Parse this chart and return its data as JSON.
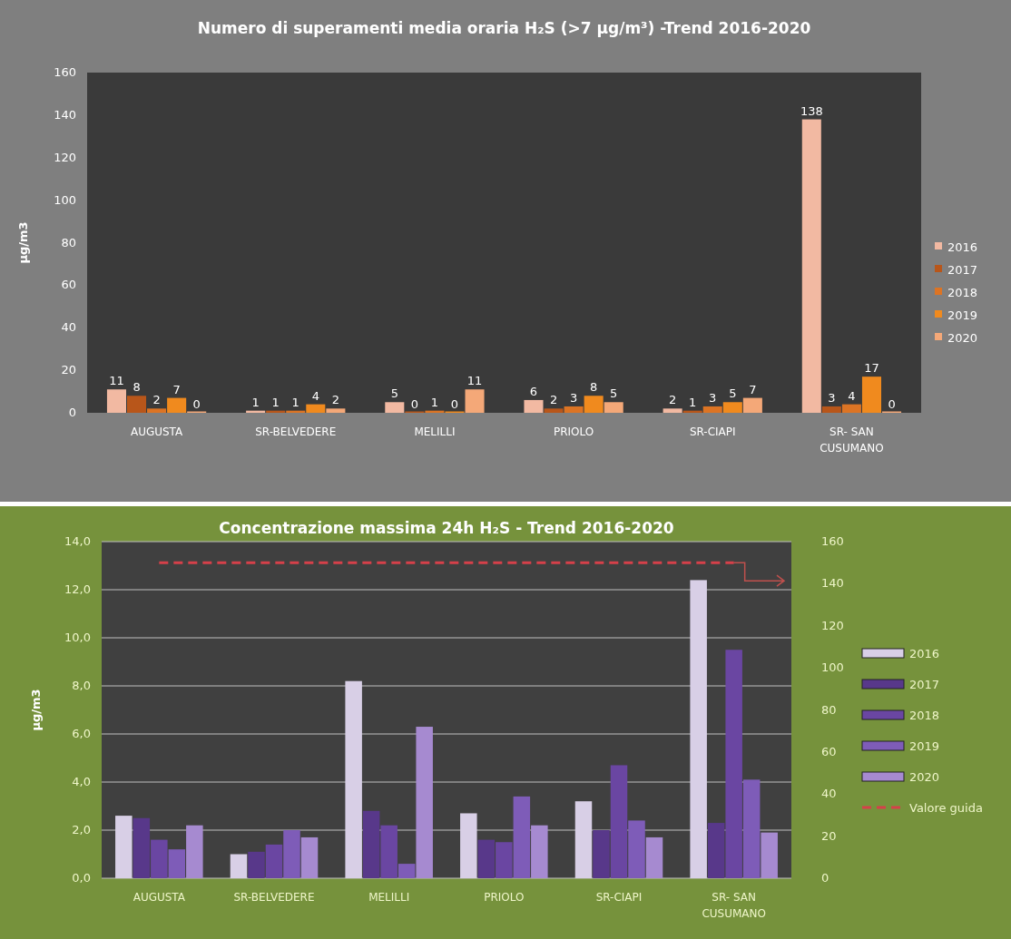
{
  "chart_data": [
    {
      "type": "bar",
      "title": "Numero di superamenti media oraria H₂S (>7 µg/m³) -Trend 2016-2020",
      "ylabel": "µg/m3",
      "categories": [
        "AUGUSTA",
        "SR-BELVEDERE",
        "MELILLI",
        "PRIOLO",
        "SR-CIAPI",
        "SR- SAN CUSUMANO"
      ],
      "series": [
        {
          "name": "2016",
          "color": "#f2b9a2",
          "values": [
            11,
            1,
            5,
            6,
            2,
            138
          ]
        },
        {
          "name": "2017",
          "color": "#b8561a",
          "values": [
            8,
            1,
            0,
            2,
            1,
            3
          ]
        },
        {
          "name": "2018",
          "color": "#dc7424",
          "values": [
            2,
            1,
            1,
            3,
            3,
            4
          ]
        },
        {
          "name": "2019",
          "color": "#f08a1e",
          "values": [
            7,
            4,
            0,
            8,
            5,
            17
          ]
        },
        {
          "name": "2020",
          "color": "#f4a878",
          "values": [
            0,
            2,
            11,
            5,
            7,
            0
          ]
        }
      ],
      "ylim": [
        0,
        160
      ],
      "yticks": [
        0,
        20,
        40,
        60,
        80,
        100,
        120,
        140,
        160
      ],
      "grid": false,
      "legend": "right",
      "data_labels": true
    },
    {
      "type": "bar",
      "title": "Concentrazione massima 24h H₂S - Trend 2016-2020",
      "ylabel": "µg/m3",
      "categories": [
        "AUGUSTA",
        "SR-BELVEDERE",
        "MELILLI",
        "PRIOLO",
        "SR-CIAPI",
        "SR- SAN CUSUMANO"
      ],
      "series": [
        {
          "name": "2016",
          "color": "#d8cfe6",
          "values": [
            2.6,
            1.0,
            8.2,
            2.7,
            3.2,
            12.4
          ]
        },
        {
          "name": "2017",
          "color": "#58388a",
          "values": [
            2.5,
            1.1,
            2.8,
            1.6,
            2.0,
            2.3
          ]
        },
        {
          "name": "2018",
          "color": "#6a46a2",
          "values": [
            1.6,
            1.4,
            2.2,
            1.5,
            4.7,
            9.5
          ]
        },
        {
          "name": "2019",
          "color": "#7e5cb8",
          "values": [
            1.2,
            2.0,
            0.6,
            3.4,
            2.4,
            4.1
          ]
        },
        {
          "name": "2020",
          "color": "#a68ad0",
          "values": [
            2.2,
            1.7,
            6.3,
            2.2,
            1.7,
            1.9
          ]
        }
      ],
      "ylim": [
        0,
        14
      ],
      "yticks": [
        {
          "value": 0,
          "label": "0,0"
        },
        {
          "value": 2,
          "label": "2,0"
        },
        {
          "value": 4,
          "label": "4,0"
        },
        {
          "value": 6,
          "label": "6,0"
        },
        {
          "value": 8,
          "label": "8,0"
        },
        {
          "value": 10,
          "label": "10,0"
        },
        {
          "value": 12,
          "label": "12,0"
        },
        {
          "value": 14,
          "label": "14,0"
        }
      ],
      "y2lim": [
        0,
        160
      ],
      "y2ticks": [
        0,
        20,
        40,
        60,
        80,
        100,
        120,
        140,
        160
      ],
      "ref_lines": [
        {
          "axis": "y2",
          "value": 150,
          "label": "Valore guida",
          "color": "#d6404a",
          "line_style": "dashed"
        }
      ],
      "grid": "y",
      "legend": "right"
    }
  ]
}
